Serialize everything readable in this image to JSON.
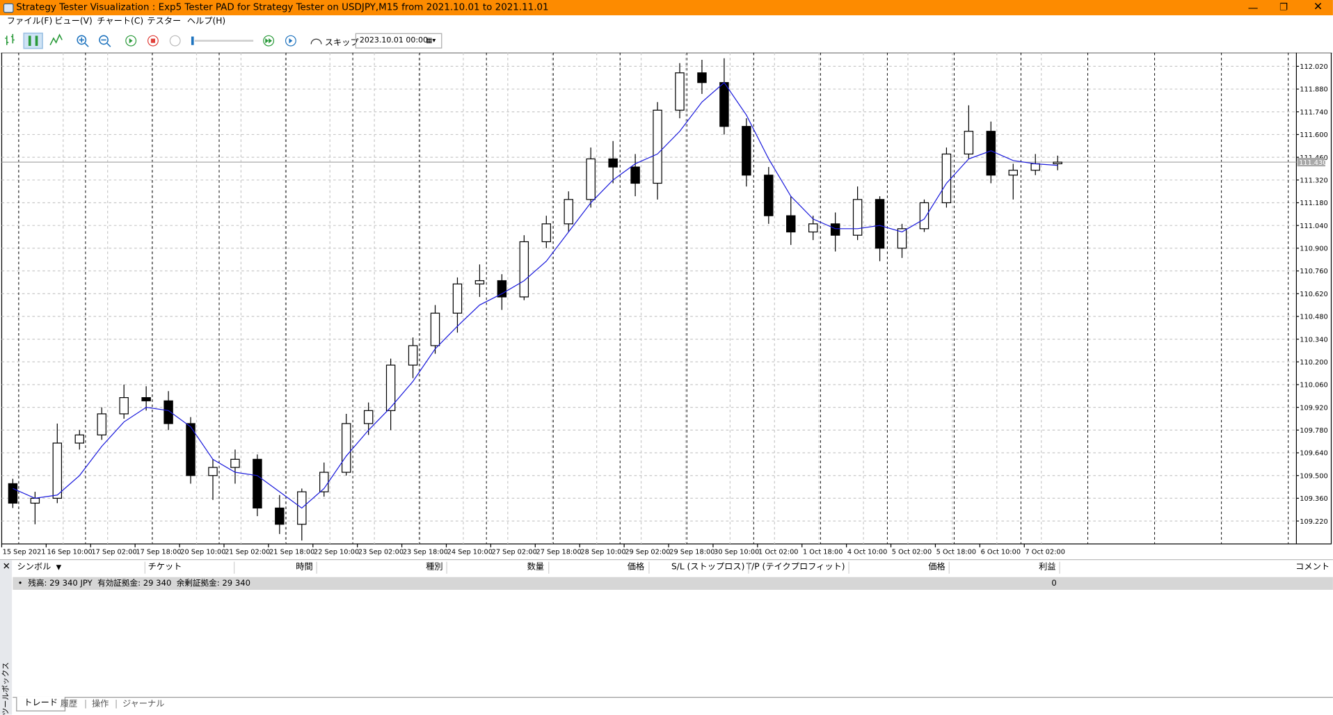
{
  "window": {
    "title": "Strategy Tester Visualization : Exp5 Tester PAD for Strategy Tester on USDJPY,M15 from 2021.10.01 to 2021.11.01"
  },
  "menu": [
    "ファイル(F)",
    "ビュー(V)",
    "チャート(C)",
    "テスター",
    "ヘルプ(H)"
  ],
  "toolbar": {
    "skip": "スキップ",
    "date": "2023.10.01 00:00"
  },
  "chart_data": {
    "type": "candlestick",
    "categories": [
      "15 Sep 2021",
      null,
      "16 Sep 10:00",
      null,
      "17 Sep 02:00",
      null,
      "17 Sep 18:00",
      null,
      "20 Sep 10:00",
      null,
      "21 Sep 02:00",
      null,
      "21 Sep 18:00",
      null,
      "22 Sep 10:00",
      null,
      "23 Sep 02:00",
      null,
      "23 Sep 18:00",
      null,
      "24 Sep 10:00",
      null,
      "27 Sep 02:00",
      null,
      "27 Sep 18:00",
      null,
      "28 Sep 10:00",
      null,
      "29 Sep 02:00",
      null,
      "29 Sep 18:00",
      null,
      "30 Sep 10:00",
      null,
      "1 Oct 02:00",
      null,
      "1 Oct 18:00",
      null,
      "4 Oct 10:00",
      null,
      "5 Oct 02:00",
      null,
      "5 Oct 18:00",
      null,
      "6 Oct 10:00",
      null,
      "7 Oct 02:00",
      null
    ],
    "open": [
      109.45,
      109.33,
      109.36,
      109.7,
      109.75,
      109.88,
      109.98,
      109.96,
      109.82,
      109.5,
      109.55,
      109.6,
      109.3,
      109.2,
      109.4,
      109.52,
      109.82,
      109.9,
      110.18,
      110.3,
      110.5,
      110.68,
      110.7,
      110.6,
      110.94,
      111.05,
      111.2,
      111.45,
      111.4,
      111.3,
      111.75,
      111.98,
      111.92,
      111.65,
      111.35,
      111.1,
      111.0,
      111.05,
      110.98,
      111.2,
      110.9,
      111.02,
      111.18,
      111.48,
      111.62,
      111.35,
      111.38,
      111.42
    ],
    "high": [
      109.48,
      109.4,
      109.82,
      109.78,
      109.92,
      110.06,
      110.05,
      110.02,
      109.86,
      109.6,
      109.66,
      109.63,
      109.38,
      109.42,
      109.58,
      109.88,
      109.95,
      110.22,
      110.35,
      110.55,
      110.72,
      110.8,
      110.74,
      110.98,
      111.1,
      111.25,
      111.52,
      111.56,
      111.48,
      111.8,
      112.04,
      112.06,
      112.07,
      111.7,
      111.4,
      111.22,
      111.1,
      111.12,
      111.28,
      111.22,
      111.05,
      111.2,
      111.52,
      111.78,
      111.68,
      111.42,
      111.48,
      111.47
    ],
    "low": [
      109.3,
      109.2,
      109.33,
      109.66,
      109.72,
      109.85,
      109.9,
      109.78,
      109.45,
      109.35,
      109.45,
      109.25,
      109.14,
      109.1,
      109.37,
      109.5,
      109.75,
      109.78,
      110.1,
      110.25,
      110.38,
      110.6,
      110.52,
      110.58,
      110.9,
      111.0,
      111.15,
      111.3,
      111.22,
      111.2,
      111.7,
      111.85,
      111.6,
      111.28,
      111.05,
      110.92,
      110.95,
      110.88,
      110.95,
      110.82,
      110.84,
      111.0,
      111.15,
      111.45,
      111.3,
      111.2,
      111.35,
      111.38
    ],
    "close": [
      109.33,
      109.36,
      109.7,
      109.75,
      109.88,
      109.98,
      109.96,
      109.82,
      109.5,
      109.55,
      109.6,
      109.3,
      109.2,
      109.4,
      109.52,
      109.82,
      109.9,
      110.18,
      110.3,
      110.5,
      110.68,
      110.7,
      110.6,
      110.94,
      111.05,
      111.2,
      111.45,
      111.4,
      111.3,
      111.75,
      111.98,
      111.92,
      111.65,
      111.35,
      111.1,
      111.0,
      111.05,
      110.98,
      111.2,
      110.9,
      111.02,
      111.18,
      111.48,
      111.62,
      111.35,
      111.38,
      111.42,
      111.43
    ],
    "ma": {
      "color": "#1a1adc",
      "values": [
        109.42,
        109.36,
        109.38,
        109.5,
        109.68,
        109.83,
        109.92,
        109.9,
        109.8,
        109.6,
        109.52,
        109.5,
        109.4,
        109.3,
        109.42,
        109.62,
        109.78,
        109.92,
        110.08,
        110.28,
        110.42,
        110.55,
        110.62,
        110.7,
        110.82,
        111.0,
        111.18,
        111.32,
        111.42,
        111.48,
        111.62,
        111.8,
        111.92,
        111.72,
        111.45,
        111.22,
        111.08,
        111.02,
        111.02,
        111.04,
        111.0,
        111.08,
        111.3,
        111.45,
        111.5,
        111.44,
        111.42,
        111.41
      ]
    },
    "ylim": [
      109.079,
      112.104
    ],
    "yticks": [
      {
        "value": 109.22,
        "label": "109.220"
      },
      {
        "value": 109.36,
        "label": "109.360"
      },
      {
        "value": 109.5,
        "label": "109.500"
      },
      {
        "value": 109.64,
        "label": "109.640"
      },
      {
        "value": 109.78,
        "label": "109.780"
      },
      {
        "value": 109.92,
        "label": "109.920"
      },
      {
        "value": 110.06,
        "label": "110.060"
      },
      {
        "value": 110.2,
        "label": "110.200"
      },
      {
        "value": 110.34,
        "label": "110.340"
      },
      {
        "value": 110.48,
        "label": "110.480"
      },
      {
        "value": 110.62,
        "label": "110.620"
      },
      {
        "value": 110.76,
        "label": "110.760"
      },
      {
        "value": 110.9,
        "label": "110.900"
      },
      {
        "value": 111.04,
        "label": "111.040"
      },
      {
        "value": 111.18,
        "label": "111.180"
      },
      {
        "value": 111.32,
        "label": "111.320"
      },
      {
        "value": 111.46,
        "label": "111.460"
      },
      {
        "value": 111.6,
        "label": "111.600"
      },
      {
        "value": 111.74,
        "label": "111.740"
      },
      {
        "value": 111.88,
        "label": "111.880"
      },
      {
        "value": 112.02,
        "label": "112.020"
      }
    ],
    "last_price": {
      "value": 111.43,
      "label": "111.430"
    },
    "grid": true
  },
  "toolbox": {
    "label": "ツールボックス",
    "headers": [
      "シンボル",
      "チケット",
      "時間",
      "種別",
      "数量",
      "価格",
      "S/L (ストップロス)",
      "T/P (テイクプロフィット)",
      "価格",
      "利益",
      "コメント"
    ],
    "balance": "残高: 29 340 JPY  有効証拠金: 29 340  余剰証拠金: 29 340",
    "profit": "0",
    "tabs": [
      "トレード",
      "履歴",
      "操作",
      "ジャーナル"
    ]
  }
}
